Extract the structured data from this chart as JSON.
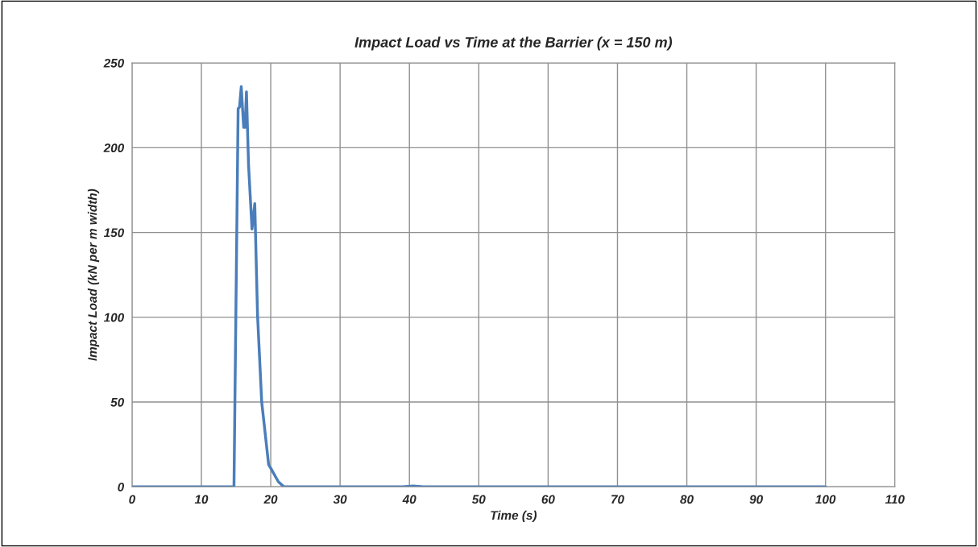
{
  "chart_data": {
    "type": "line",
    "title": "Impact Load vs Time at the Barrier (x = 150 m)",
    "xlabel": "Time (s)",
    "ylabel": "Impact Load (kN per m width)",
    "series": [
      {
        "color": "#4a7ebb",
        "x": [
          0,
          14.7,
          15.3,
          15.5,
          15.75,
          16.1,
          16.3,
          16.5,
          16.8,
          17.3,
          17.7,
          18.1,
          18.7,
          19.7,
          20.0,
          21.1,
          21.9,
          39,
          40.5,
          42,
          100
        ],
        "values": [
          0,
          0,
          223,
          224,
          236,
          212,
          212,
          233,
          190,
          152,
          167,
          101,
          50,
          13,
          11,
          3,
          0,
          0,
          0.5,
          0,
          0
        ]
      }
    ],
    "xlim": [
      0,
      110
    ],
    "xticks": [
      0,
      10,
      20,
      30,
      40,
      50,
      60,
      70,
      80,
      90,
      100,
      110
    ],
    "ylim": [
      0,
      250
    ],
    "yticks": [
      0,
      50,
      100,
      150,
      200,
      250
    ],
    "grid": true,
    "legend": false,
    "marker": "none",
    "line_style": "solid"
  }
}
